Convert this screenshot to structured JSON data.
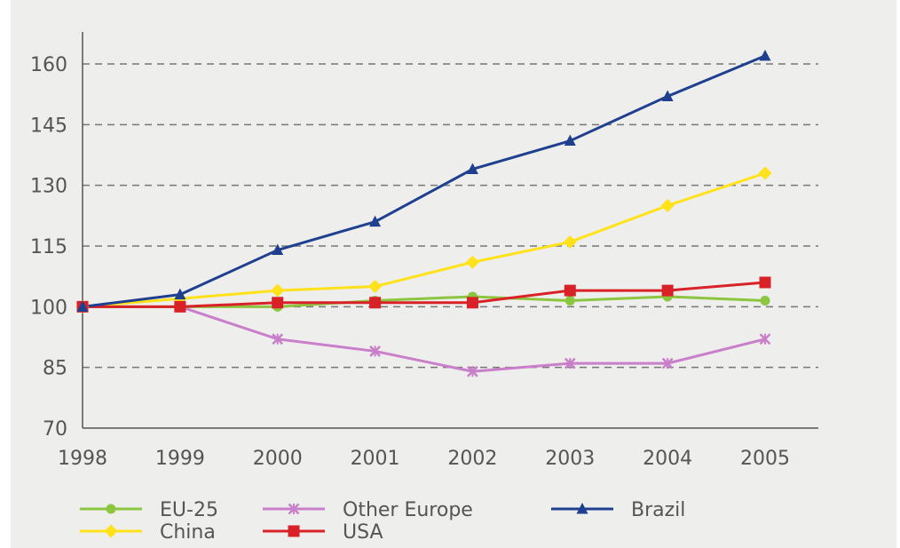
{
  "chart_data": {
    "type": "line",
    "title": "",
    "xlabel": "",
    "ylabel": "",
    "x": [
      "1998",
      "1999",
      "2000",
      "2001",
      "2002",
      "2003",
      "2004",
      "2005"
    ],
    "ylim": [
      70,
      165
    ],
    "yticks": [
      70,
      85,
      100,
      115,
      130,
      145,
      160
    ],
    "grid": "horizontal dashed",
    "legend_position": "bottom",
    "series": [
      {
        "name": "EU-25",
        "color": "#8cc63f",
        "marker": "circle",
        "values": [
          100,
          100,
          100,
          101.5,
          102.5,
          101.5,
          102.5,
          101.5
        ]
      },
      {
        "name": "Other Europe",
        "color": "#c97fc9",
        "marker": "x",
        "values": [
          100,
          100,
          92,
          89,
          84,
          86,
          86,
          92
        ]
      },
      {
        "name": "Brazil",
        "color": "#1f3f8f",
        "marker": "triangle",
        "values": [
          100,
          103,
          114,
          121,
          134,
          141,
          152,
          162
        ]
      },
      {
        "name": "China",
        "color": "#ffe21a",
        "marker": "diamond",
        "values": [
          100,
          102,
          104,
          105,
          111,
          116,
          125,
          133
        ]
      },
      {
        "name": "USA",
        "color": "#d92128",
        "marker": "square",
        "values": [
          100,
          100,
          101,
          101,
          101,
          104,
          104,
          106
        ]
      }
    ]
  }
}
